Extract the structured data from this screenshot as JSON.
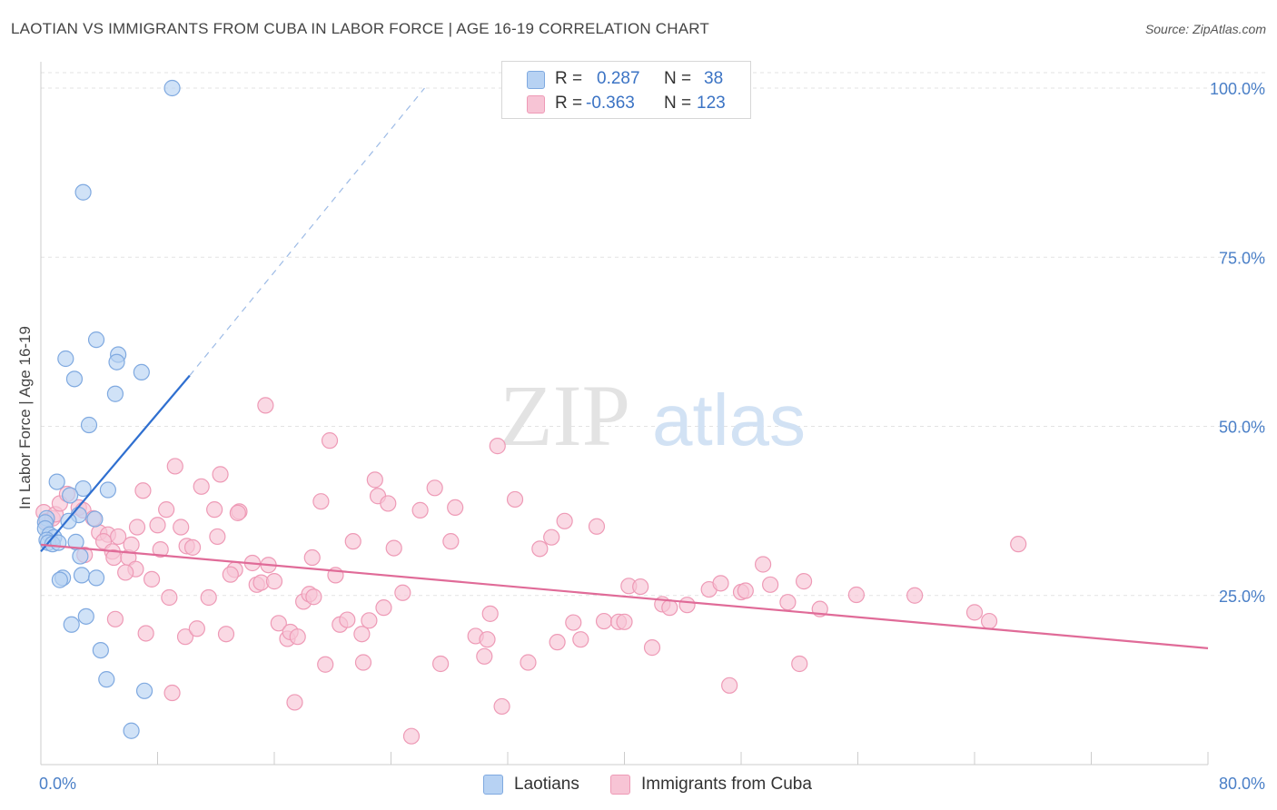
{
  "title": "LAOTIAN VS IMMIGRANTS FROM CUBA IN LABOR FORCE | AGE 16-19 CORRELATION CHART",
  "source": "Source: ZipAtlas.com",
  "watermark": {
    "zip": "ZIP",
    "atlas": "atlas"
  },
  "colors": {
    "blue_fill": "#b7d2f3",
    "blue_stroke": "#7fa9e0",
    "blue_line": "#2f6fd0",
    "pink_fill": "#f7c4d5",
    "pink_stroke": "#ee9ab6",
    "pink_line": "#e06b98",
    "grid": "#e3e3e3",
    "axis": "#cccccc",
    "tick_text": "#4a7fc7"
  },
  "legend": {
    "rows": [
      {
        "r_label": "R =",
        "r_value": "0.287",
        "n_label": "N =",
        "n_value": "38"
      },
      {
        "r_label": "R =",
        "r_value": "-0.363",
        "n_label": "N =",
        "n_value": "123"
      }
    ]
  },
  "bottom_legend": {
    "series1": "Laotians",
    "series2": "Immigrants from Cuba"
  },
  "chart_data": {
    "type": "scatter",
    "title": "LAOTIAN VS IMMIGRANTS FROM CUBA IN LABOR FORCE | AGE 16-19 CORRELATION CHART",
    "xlabel": "",
    "ylabel": "In Labor Force | Age 16-19",
    "xlim": [
      0,
      80
    ],
    "ylim": [
      0,
      100
    ],
    "y_ticks": [
      25,
      50,
      75,
      100
    ],
    "y_tick_labels": [
      "25.0%",
      "50.0%",
      "75.0%",
      "100.0%"
    ],
    "x_tick_labels": [
      "0.0%",
      "80.0%"
    ],
    "grid": true,
    "series": [
      {
        "name": "Laotians",
        "r": 0.287,
        "n": 38,
        "trend": {
          "x0": 0,
          "y0": 31.5,
          "x1": 10.2,
          "y1": 57.5,
          "dashed_to_x": 26.3,
          "dashed_to_y": 100
        },
        "points": [
          [
            9.0,
            100.0
          ],
          [
            2.9,
            84.6
          ],
          [
            3.8,
            62.8
          ],
          [
            5.3,
            60.6
          ],
          [
            1.7,
            60.0
          ],
          [
            5.2,
            59.5
          ],
          [
            6.9,
            58.0
          ],
          [
            2.3,
            57.0
          ],
          [
            5.1,
            54.8
          ],
          [
            3.3,
            50.2
          ],
          [
            1.1,
            41.8
          ],
          [
            2.9,
            40.8
          ],
          [
            4.6,
            40.6
          ],
          [
            2.0,
            39.8
          ],
          [
            2.6,
            36.9
          ],
          [
            0.4,
            36.4
          ],
          [
            0.3,
            35.8
          ],
          [
            3.7,
            36.3
          ],
          [
            1.9,
            36.0
          ],
          [
            0.3,
            34.9
          ],
          [
            0.6,
            34.0
          ],
          [
            0.9,
            33.6
          ],
          [
            0.4,
            33.2
          ],
          [
            0.5,
            32.8
          ],
          [
            0.8,
            32.6
          ],
          [
            1.2,
            32.8
          ],
          [
            2.4,
            32.9
          ],
          [
            2.7,
            30.8
          ],
          [
            2.8,
            28.0
          ],
          [
            1.5,
            27.6
          ],
          [
            1.3,
            27.3
          ],
          [
            3.8,
            27.6
          ],
          [
            3.1,
            21.9
          ],
          [
            2.1,
            20.7
          ],
          [
            4.1,
            16.9
          ],
          [
            4.5,
            12.6
          ],
          [
            7.1,
            10.9
          ],
          [
            6.2,
            5.0
          ]
        ]
      },
      {
        "name": "Immigrants from Cuba",
        "r": -0.363,
        "n": 123,
        "trend": {
          "x0": 0,
          "y0": 32.5,
          "x1": 80,
          "y1": 17.2
        },
        "points": [
          [
            0.2,
            37.3
          ],
          [
            0.4,
            36.0
          ],
          [
            0.8,
            36.4
          ],
          [
            1.0,
            37.0
          ],
          [
            1.3,
            38.6
          ],
          [
            1.8,
            40.0
          ],
          [
            2.6,
            38.0
          ],
          [
            2.9,
            37.6
          ],
          [
            3.6,
            36.4
          ],
          [
            4.0,
            34.3
          ],
          [
            4.6,
            34.0
          ],
          [
            5.3,
            33.7
          ],
          [
            4.3,
            33.0
          ],
          [
            4.9,
            31.5
          ],
          [
            5.0,
            30.6
          ],
          [
            6.0,
            30.6
          ],
          [
            6.5,
            28.9
          ],
          [
            5.8,
            28.4
          ],
          [
            6.2,
            32.5
          ],
          [
            6.6,
            35.1
          ],
          [
            7.0,
            40.5
          ],
          [
            7.6,
            27.4
          ],
          [
            8.2,
            31.8
          ],
          [
            8.0,
            35.4
          ],
          [
            8.6,
            37.7
          ],
          [
            8.8,
            24.7
          ],
          [
            9.2,
            44.1
          ],
          [
            9.6,
            35.1
          ],
          [
            10.0,
            32.3
          ],
          [
            10.4,
            32.1
          ],
          [
            11.0,
            41.1
          ],
          [
            11.5,
            24.7
          ],
          [
            11.9,
            37.7
          ],
          [
            12.1,
            33.7
          ],
          [
            12.3,
            42.9
          ],
          [
            13.6,
            37.4
          ],
          [
            13.3,
            28.8
          ],
          [
            13.0,
            28.1
          ],
          [
            14.5,
            29.8
          ],
          [
            14.8,
            26.6
          ],
          [
            15.1,
            26.9
          ],
          [
            15.6,
            29.5
          ],
          [
            16.0,
            27.1
          ],
          [
            15.4,
            53.1
          ],
          [
            16.3,
            20.9
          ],
          [
            16.9,
            18.6
          ],
          [
            17.1,
            19.6
          ],
          [
            17.4,
            9.2
          ],
          [
            17.6,
            18.9
          ],
          [
            18.0,
            24.1
          ],
          [
            18.4,
            25.2
          ],
          [
            18.7,
            24.8
          ],
          [
            18.6,
            30.6
          ],
          [
            19.2,
            38.9
          ],
          [
            19.5,
            14.8
          ],
          [
            19.8,
            47.9
          ],
          [
            20.2,
            28.0
          ],
          [
            20.5,
            20.7
          ],
          [
            21.0,
            21.4
          ],
          [
            21.4,
            33.0
          ],
          [
            22.0,
            19.3
          ],
          [
            22.1,
            15.1
          ],
          [
            22.5,
            21.3
          ],
          [
            22.9,
            42.1
          ],
          [
            23.1,
            39.7
          ],
          [
            23.5,
            23.2
          ],
          [
            23.8,
            38.6
          ],
          [
            24.2,
            32.0
          ],
          [
            24.8,
            25.4
          ],
          [
            25.4,
            4.2
          ],
          [
            26.0,
            37.6
          ],
          [
            27.0,
            40.9
          ],
          [
            27.4,
            14.9
          ],
          [
            28.1,
            33.0
          ],
          [
            28.4,
            38.0
          ],
          [
            29.8,
            19.0
          ],
          [
            30.4,
            16.0
          ],
          [
            30.6,
            18.5
          ],
          [
            30.8,
            22.3
          ],
          [
            31.3,
            47.1
          ],
          [
            31.6,
            8.6
          ],
          [
            32.5,
            39.2
          ],
          [
            33.4,
            15.1
          ],
          [
            34.2,
            31.9
          ],
          [
            35.0,
            33.6
          ],
          [
            35.4,
            18.1
          ],
          [
            35.9,
            36.0
          ],
          [
            36.5,
            21.0
          ],
          [
            37.0,
            18.5
          ],
          [
            38.1,
            35.2
          ],
          [
            38.6,
            21.2
          ],
          [
            39.6,
            21.1
          ],
          [
            40.0,
            21.1
          ],
          [
            40.3,
            26.4
          ],
          [
            41.1,
            26.3
          ],
          [
            41.9,
            17.3
          ],
          [
            42.6,
            23.7
          ],
          [
            43.1,
            23.2
          ],
          [
            44.3,
            23.6
          ],
          [
            45.8,
            25.9
          ],
          [
            46.6,
            26.8
          ],
          [
            47.2,
            11.7
          ],
          [
            48.0,
            25.5
          ],
          [
            48.3,
            25.7
          ],
          [
            49.5,
            29.6
          ],
          [
            50.0,
            26.6
          ],
          [
            51.2,
            24.0
          ],
          [
            52.0,
            14.9
          ],
          [
            52.3,
            27.1
          ],
          [
            53.4,
            23.0
          ],
          [
            55.9,
            25.1
          ],
          [
            59.9,
            25.0
          ],
          [
            64.0,
            22.5
          ],
          [
            65.0,
            21.2
          ],
          [
            67.0,
            32.6
          ],
          [
            9.9,
            18.9
          ],
          [
            10.7,
            20.1
          ],
          [
            7.2,
            19.4
          ],
          [
            12.7,
            19.3
          ],
          [
            5.1,
            21.5
          ],
          [
            9.0,
            10.6
          ],
          [
            13.5,
            37.2
          ],
          [
            3.0,
            31.0
          ]
        ]
      }
    ]
  }
}
